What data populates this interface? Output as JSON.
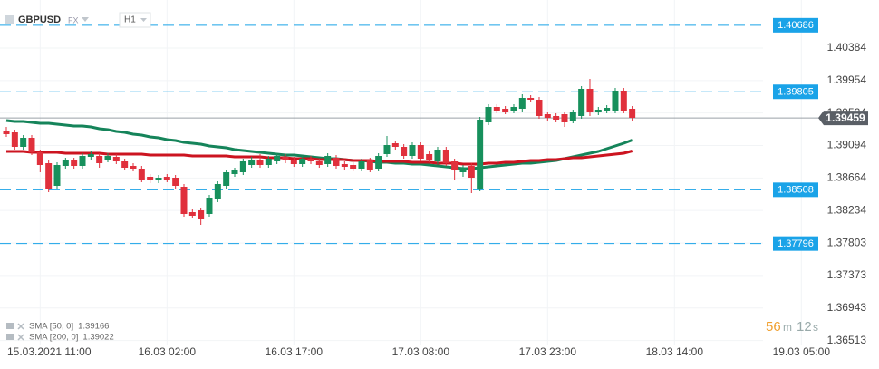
{
  "chart_data": {
    "type": "candlestick",
    "title": "GBPUSD",
    "market": "FX",
    "timeframe": "H1",
    "categories": [
      null,
      null,
      null,
      null,
      "15.03.2021 11:00",
      null,
      null,
      null,
      null,
      null,
      null,
      null,
      null,
      null,
      null,
      null,
      null,
      null,
      null,
      "16.03 02:00",
      null,
      null,
      null,
      null,
      null,
      null,
      null,
      null,
      null,
      null,
      null,
      null,
      null,
      null,
      "16.03 17:00",
      null,
      null,
      null,
      null,
      null,
      null,
      null,
      null,
      null,
      null,
      null,
      null,
      null,
      null,
      "17.03 08:00",
      null,
      null,
      null,
      null,
      null,
      null,
      null,
      null,
      null,
      null,
      null,
      null,
      null,
      null,
      "17.03 23:00",
      null,
      null,
      null,
      null,
      null,
      null,
      null,
      null,
      null,
      null,
      null,
      null,
      null,
      null,
      "18.03 14:00",
      null,
      null,
      null,
      null,
      null,
      null,
      null,
      null,
      null,
      null,
      null,
      null,
      null,
      null,
      "19.03 05:00",
      null
    ],
    "open": [
      1.39292,
      1.39268,
      1.39076,
      1.39196,
      1.39004,
      1.3886,
      1.3856,
      1.38824,
      1.38896,
      1.38824,
      1.38944,
      1.38956,
      1.38908,
      1.38944,
      1.38884,
      1.38824,
      1.38788,
      1.3868,
      1.38632,
      1.3868,
      1.38668,
      1.38548,
      1.38212,
      1.38236,
      1.38188,
      1.3838,
      1.3856,
      1.38716,
      1.3874,
      1.38836,
      1.38908,
      1.38836,
      1.38884,
      1.38944,
      1.38908,
      1.38848,
      1.3892,
      1.38884,
      1.38848,
      1.38932,
      1.38848,
      1.38836,
      1.38788,
      1.38896,
      1.38788,
      1.3898,
      1.39124,
      1.39076,
      1.38956,
      1.391,
      1.3898,
      1.38884,
      1.3904,
      1.38884,
      1.3874,
      1.38824,
      1.38524,
      1.394,
      1.39604,
      1.3958,
      1.39556,
      1.3958,
      1.39724,
      1.397,
      1.39508,
      1.39484,
      1.39508,
      1.39424,
      1.39484,
      1.39844,
      1.39532,
      1.39556,
      1.39556,
      1.3982,
      1.3958,
      null,
      null,
      null,
      null,
      null,
      null,
      null,
      null,
      null,
      null,
      null,
      null,
      null,
      null,
      null,
      null,
      null,
      null,
      null,
      null,
      null
    ],
    "high": [
      1.3934,
      1.39304,
      1.39232,
      1.39232,
      1.3904,
      1.38896,
      1.38872,
      1.38932,
      1.38932,
      1.38992,
      1.39016,
      1.38992,
      1.38992,
      1.3898,
      1.3892,
      1.3886,
      1.38824,
      1.38716,
      1.38704,
      1.38716,
      1.38704,
      1.38584,
      1.38248,
      1.38272,
      1.3844,
      1.3862,
      1.38776,
      1.388,
      1.3892,
      1.38944,
      1.3898,
      1.38956,
      1.38992,
      1.3898,
      1.38944,
      1.38956,
      1.38956,
      1.3892,
      1.38992,
      1.38968,
      1.38884,
      1.38872,
      1.3892,
      1.38932,
      1.38992,
      1.3922,
      1.3916,
      1.39112,
      1.39136,
      1.39136,
      1.39016,
      1.39076,
      1.39076,
      1.3892,
      1.38836,
      1.3886,
      1.39472,
      1.3964,
      1.3964,
      1.39616,
      1.3964,
      1.39772,
      1.3976,
      1.39736,
      1.39544,
      1.3952,
      1.39544,
      1.39568,
      1.3988,
      1.39976,
      1.39604,
      1.39628,
      1.39856,
      1.39856,
      1.39616,
      null,
      null,
      null,
      null,
      null,
      null,
      null,
      null,
      null,
      null,
      null,
      null,
      null,
      null,
      null,
      null,
      null,
      null,
      null,
      null,
      null
    ],
    "low": [
      1.39208,
      1.3904,
      1.3904,
      1.38968,
      1.3874,
      1.38476,
      1.38524,
      1.38788,
      1.38788,
      1.38788,
      1.38908,
      1.388,
      1.38872,
      1.38848,
      1.38764,
      1.38752,
      1.38608,
      1.38596,
      1.38596,
      1.38608,
      1.38524,
      1.38152,
      1.38128,
      1.38044,
      1.38152,
      1.38344,
      1.38524,
      1.3868,
      1.38704,
      1.388,
      1.388,
      1.388,
      1.38848,
      1.3886,
      1.38812,
      1.38812,
      1.38848,
      1.388,
      1.38812,
      1.38788,
      1.38776,
      1.38752,
      1.38752,
      1.3874,
      1.38752,
      1.38944,
      1.3904,
      1.3892,
      1.3892,
      1.38884,
      1.38872,
      1.38848,
      1.38824,
      1.38644,
      1.3868,
      1.38464,
      1.38488,
      1.39364,
      1.3952,
      1.39508,
      1.3952,
      1.39544,
      1.39664,
      1.39448,
      1.39424,
      1.394,
      1.3934,
      1.39388,
      1.39448,
      1.39484,
      1.39496,
      1.3952,
      1.3952,
      1.3952,
      1.39424,
      null,
      null,
      null,
      null,
      null,
      null,
      null,
      null,
      null,
      null,
      null,
      null,
      null,
      null,
      null,
      null,
      null,
      null,
      null,
      null,
      null
    ],
    "close": [
      1.39244,
      1.39076,
      1.39196,
      1.39004,
      1.38836,
      1.38524,
      1.38836,
      1.38896,
      1.38824,
      1.38956,
      1.3898,
      1.3886,
      1.38956,
      1.38884,
      1.388,
      1.38788,
      1.38644,
      1.38632,
      1.38668,
      1.38644,
      1.3856,
      1.38188,
      1.38164,
      1.38116,
      1.38404,
      1.38584,
      1.3874,
      1.38764,
      1.38884,
      1.38908,
      1.38836,
      1.3892,
      1.38956,
      1.38896,
      1.38848,
      1.3892,
      1.38884,
      1.38836,
      1.38956,
      1.38824,
      1.38812,
      1.38788,
      1.38884,
      1.38776,
      1.38956,
      1.391,
      1.39076,
      1.38956,
      1.391,
      1.3892,
      1.38908,
      1.3904,
      1.3886,
      1.38764,
      1.388,
      1.38668,
      1.39436,
      1.39604,
      1.39556,
      1.39544,
      1.39604,
      1.39724,
      1.397,
      1.39484,
      1.3946,
      1.39436,
      1.394,
      1.39532,
      1.39844,
      1.39544,
      1.39568,
      1.39592,
      1.3982,
      1.39556,
      1.3946,
      null,
      null,
      null,
      null,
      null,
      null,
      null,
      null,
      null,
      null,
      null,
      null,
      null,
      null,
      null,
      null,
      null,
      null,
      null,
      null,
      null
    ],
    "up_color": "#17905c",
    "down_color": "#e0303c",
    "series": [
      {
        "name": "SMA [50, 0]",
        "color": "#15845a",
        "values": [
          1.39424,
          1.39412,
          1.39412,
          1.394,
          1.39388,
          1.39388,
          1.39376,
          1.39364,
          1.39352,
          1.39352,
          1.3934,
          1.39316,
          1.39304,
          1.3928,
          1.39268,
          1.39244,
          1.39232,
          1.39208,
          1.39196,
          1.39172,
          1.3916,
          1.39136,
          1.39124,
          1.39112,
          1.39088,
          1.39076,
          1.39064,
          1.3904,
          1.39028,
          1.39016,
          1.39004,
          1.38992,
          1.3898,
          1.38968,
          1.38968,
          1.38956,
          1.38944,
          1.38932,
          1.3892,
          1.3892,
          1.38908,
          1.38896,
          1.38896,
          1.38884,
          1.38872,
          1.38872,
          1.3886,
          1.3886,
          1.38848,
          1.38848,
          1.38836,
          1.38824,
          1.38812,
          1.388,
          1.38788,
          1.38788,
          1.388,
          1.38812,
          1.38824,
          1.38836,
          1.38848,
          1.3886,
          1.3886,
          1.38872,
          1.38884,
          1.38896,
          1.3892,
          1.38944,
          1.38968,
          1.38992,
          1.39016,
          1.39052,
          1.39088,
          1.39124,
          1.39166,
          null,
          null,
          null,
          null,
          null,
          null,
          null,
          null,
          null,
          null,
          null,
          null,
          null,
          null,
          null,
          null,
          null,
          null,
          null,
          null,
          null
        ]
      },
      {
        "name": "SMA [200, 0]",
        "color": "#cc1420",
        "values": [
          1.39016,
          1.39016,
          1.39016,
          1.39004,
          1.39004,
          1.39004,
          1.39004,
          1.38992,
          1.38992,
          1.38992,
          1.38992,
          1.38992,
          1.3898,
          1.3898,
          1.3898,
          1.3898,
          1.3898,
          1.38968,
          1.38968,
          1.38968,
          1.38968,
          1.38968,
          1.38956,
          1.38956,
          1.38956,
          1.38956,
          1.38956,
          1.38944,
          1.38944,
          1.38944,
          1.38944,
          1.38932,
          1.38932,
          1.38932,
          1.3892,
          1.3892,
          1.3892,
          1.38908,
          1.38908,
          1.38908,
          1.38908,
          1.38896,
          1.38896,
          1.38896,
          1.38884,
          1.38884,
          1.38884,
          1.38884,
          1.38872,
          1.38872,
          1.38872,
          1.3886,
          1.3886,
          1.3886,
          1.38848,
          1.38848,
          1.38848,
          1.3886,
          1.3886,
          1.38872,
          1.38872,
          1.38884,
          1.38896,
          1.38896,
          1.38908,
          1.38908,
          1.3892,
          1.38932,
          1.38932,
          1.38944,
          1.38956,
          1.38968,
          1.3898,
          1.38992,
          1.39022,
          null,
          null,
          null,
          null,
          null,
          null,
          null,
          null,
          null,
          null,
          null,
          null,
          null,
          null,
          null,
          null,
          null,
          null,
          null,
          null,
          null
        ]
      }
    ],
    "levels": [
      1.40686,
      1.39805,
      1.38508,
      1.37796
    ],
    "level_color": "#1aa3e8",
    "last_price": 1.39459,
    "ylim": [
      1.3646,
      1.4102
    ],
    "yticks": [
      1.40384,
      1.39954,
      1.39524,
      1.39094,
      1.38664,
      1.38234,
      1.37803,
      1.37373,
      1.36943,
      1.36513
    ],
    "grid": true,
    "countdown": [
      "56",
      "m",
      "12",
      "s"
    ]
  }
}
